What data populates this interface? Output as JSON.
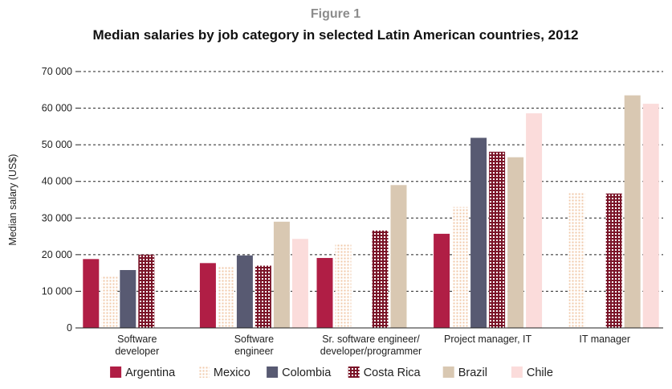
{
  "figure_label": "Figure 1",
  "chart_data": {
    "type": "bar",
    "title": "Median salaries by job category in selected Latin American countries, 2012",
    "ylabel": "Median salary (US$)",
    "xlabel": "",
    "ylim": [
      0,
      70000
    ],
    "yticks": [
      0,
      10000,
      20000,
      30000,
      40000,
      50000,
      60000,
      70000
    ],
    "ytick_labels": [
      "0",
      "10 000",
      "20 000",
      "30 000",
      "40 000",
      "50 000",
      "60 000",
      "70 000"
    ],
    "grid": true,
    "legend_position": "bottom",
    "categories": [
      [
        "Software",
        "developer"
      ],
      [
        "Software",
        "engineer"
      ],
      [
        "Sr. software engineer/",
        "developer/programmer"
      ],
      [
        "Project manager, IT"
      ],
      [
        "IT manager"
      ]
    ],
    "series": [
      {
        "name": "Argentina",
        "color": "#b01e45",
        "pattern": "solid",
        "values": [
          18800,
          17700,
          19100,
          25700,
          null
        ]
      },
      {
        "name": "Mexico",
        "color": "#f0c8a8",
        "pattern": "dots",
        "values": [
          14300,
          16800,
          22800,
          33000,
          36900
        ]
      },
      {
        "name": "Colombia",
        "color": "#585a72",
        "pattern": "solid",
        "values": [
          15800,
          19800,
          null,
          51900,
          null
        ]
      },
      {
        "name": "Costa Rica",
        "color": "#7a1428",
        "pattern": "grid",
        "values": [
          20000,
          17000,
          26600,
          48100,
          36700
        ]
      },
      {
        "name": "Brazil",
        "color": "#d9c8b2",
        "pattern": "solid",
        "values": [
          null,
          29000,
          39000,
          46600,
          63500
        ]
      },
      {
        "name": "Chile",
        "color": "#fbdcdb",
        "pattern": "solid",
        "values": [
          null,
          24300,
          null,
          58600,
          61200
        ]
      }
    ]
  }
}
